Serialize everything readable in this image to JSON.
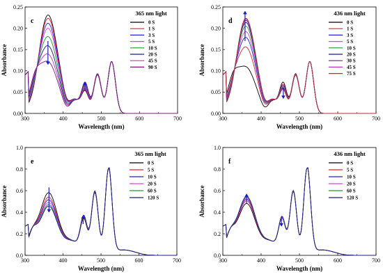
{
  "chart_data": [
    {
      "panel": "c",
      "type": "line",
      "light_label": "365 nm light",
      "xlabel": "Wavelength (nm)",
      "ylabel": "Absorbance",
      "xlim": [
        300,
        700
      ],
      "ylim": [
        0,
        0.25
      ],
      "xticks": [
        "300",
        "400",
        "500",
        "600",
        "700"
      ],
      "yticks": [
        "0.00",
        "0.05",
        "0.10",
        "0.15",
        "0.20",
        "0.25"
      ],
      "legend_position": "top-right",
      "peaks": [
        330,
        360,
        458,
        490,
        527
      ],
      "peak_min": 475,
      "arrows": [
        {
          "x": 360,
          "y1": 0.17,
          "y2": 0.115,
          "direction": "down"
        },
        {
          "x": 457,
          "y1": 0.054,
          "y2": 0.074,
          "direction": "up"
        }
      ],
      "series": [
        {
          "name": "0 S",
          "color": "#000000",
          "peak360": 0.232,
          "shoulder330": 0.098,
          "peak458": 0.044,
          "peak490": 0.09,
          "peak527": 0.122
        },
        {
          "name": "1 S",
          "color": "#e8202a",
          "peak360": 0.224,
          "shoulder330": 0.1,
          "peak458": 0.046,
          "peak490": 0.09,
          "peak527": 0.122
        },
        {
          "name": "3 S",
          "color": "#2222dd",
          "peak360": 0.212,
          "shoulder330": 0.102,
          "peak458": 0.049,
          "peak490": 0.091,
          "peak527": 0.122
        },
        {
          "name": "5 S",
          "color": "#e040e0",
          "peak360": 0.2,
          "shoulder330": 0.104,
          "peak458": 0.052,
          "peak490": 0.091,
          "peak527": 0.122
        },
        {
          "name": "10 S",
          "color": "#1b9a2a",
          "peak360": 0.18,
          "shoulder330": 0.107,
          "peak458": 0.055,
          "peak490": 0.092,
          "peak527": 0.122
        },
        {
          "name": "20 S",
          "color": "#1a1a8c",
          "peak360": 0.158,
          "shoulder330": 0.11,
          "peak458": 0.058,
          "peak490": 0.092,
          "peak527": 0.122
        },
        {
          "name": "45 S",
          "color": "#c832c8",
          "peak360": 0.138,
          "shoulder330": 0.113,
          "peak458": 0.061,
          "peak490": 0.093,
          "peak527": 0.122
        },
        {
          "name": "90 S",
          "color": "#7a1a7a",
          "peak360": 0.12,
          "shoulder330": 0.116,
          "peak458": 0.064,
          "peak490": 0.093,
          "peak527": 0.122
        }
      ]
    },
    {
      "panel": "d",
      "type": "line",
      "light_label": "436 nm light",
      "xlabel": "Wavelength (nm)",
      "ylabel": "Absorbance",
      "xlim": [
        300,
        700
      ],
      "ylim": [
        0,
        0.25
      ],
      "xticks": [
        "300",
        "400",
        "500",
        "600",
        "700"
      ],
      "yticks": [
        "0.00",
        "0.05",
        "0.10",
        "0.15",
        "0.20",
        "0.25"
      ],
      "legend_position": "top-right",
      "peaks": [
        320,
        360,
        458,
        490,
        527
      ],
      "peak_min": 475,
      "arrows": [
        {
          "x": 358,
          "y1": 0.17,
          "y2": 0.24,
          "direction": "up"
        },
        {
          "x": 458,
          "y1": 0.06,
          "y2": 0.035,
          "direction": "down"
        }
      ],
      "series": [
        {
          "name": "0 S",
          "color": "#000000",
          "peak360": 0.108,
          "shoulder330": 0.112,
          "peak458": 0.064,
          "peak490": 0.093,
          "peak527": 0.122
        },
        {
          "name": "1 S",
          "color": "#e8202a",
          "peak360": 0.155,
          "shoulder330": 0.108,
          "peak458": 0.059,
          "peak490": 0.092,
          "peak527": 0.122
        },
        {
          "name": "3 S",
          "color": "#2222dd",
          "peak360": 0.178,
          "shoulder330": 0.105,
          "peak458": 0.056,
          "peak490": 0.091,
          "peak527": 0.122
        },
        {
          "name": "5 S",
          "color": "#e040e0",
          "peak360": 0.192,
          "shoulder330": 0.104,
          "peak458": 0.054,
          "peak490": 0.091,
          "peak527": 0.122
        },
        {
          "name": "10 S",
          "color": "#1b9a2a",
          "peak360": 0.205,
          "shoulder330": 0.102,
          "peak458": 0.052,
          "peak490": 0.09,
          "peak527": 0.122
        },
        {
          "name": "20 S",
          "color": "#1a1a8c",
          "peak360": 0.214,
          "shoulder330": 0.1,
          "peak458": 0.05,
          "peak490": 0.09,
          "peak527": 0.122
        },
        {
          "name": "30 S",
          "color": "#7a1a7a",
          "peak360": 0.219,
          "shoulder330": 0.099,
          "peak458": 0.049,
          "peak490": 0.09,
          "peak527": 0.122
        },
        {
          "name": "45 S",
          "color": "#c832c8",
          "peak360": 0.222,
          "shoulder330": 0.098,
          "peak458": 0.048,
          "peak490": 0.09,
          "peak527": 0.122
        },
        {
          "name": "75 S",
          "color": "#b03030",
          "peak360": 0.224,
          "shoulder330": 0.098,
          "peak458": 0.047,
          "peak490": 0.09,
          "peak527": 0.122
        }
      ]
    },
    {
      "panel": "e",
      "type": "line",
      "light_label": "365 nm light",
      "xlabel": "Wavelength (nm)",
      "ylabel": "Absorbance",
      "xlim": [
        300,
        700
      ],
      "ylim": [
        0,
        1.0
      ],
      "xticks": [
        "300",
        "400",
        "500",
        "600",
        "700"
      ],
      "yticks": [
        "0.0",
        "0.2",
        "0.4",
        "0.6",
        "0.8",
        "1.0"
      ],
      "legend_position": "top-right",
      "peaks": [
        320,
        362,
        455,
        485,
        520
      ],
      "peak_min": 500,
      "arrows": [
        {
          "x": 363,
          "y1": 0.63,
          "y2": 0.4,
          "direction": "down"
        },
        {
          "x": 453,
          "y1": 0.29,
          "y2": 0.37,
          "direction": "up"
        }
      ],
      "series": [
        {
          "name": "0 S",
          "color": "#000000",
          "peak360": 0.58,
          "shoulder330": 0.3,
          "peak458": 0.3,
          "peak490": 0.58,
          "peak527": 0.8
        },
        {
          "name": "5 S",
          "color": "#e8202a",
          "peak360": 0.54,
          "shoulder330": 0.3,
          "peak458": 0.31,
          "peak490": 0.585,
          "peak527": 0.8
        },
        {
          "name": "10 S",
          "color": "#2222dd",
          "peak360": 0.515,
          "shoulder330": 0.3,
          "peak458": 0.315,
          "peak490": 0.588,
          "peak527": 0.802
        },
        {
          "name": "20 S",
          "color": "#e040e0",
          "peak360": 0.49,
          "shoulder330": 0.3,
          "peak458": 0.32,
          "peak490": 0.59,
          "peak527": 0.805
        },
        {
          "name": "60 S",
          "color": "#1b9a2a",
          "peak360": 0.47,
          "shoulder330": 0.3,
          "peak458": 0.325,
          "peak490": 0.592,
          "peak527": 0.808
        },
        {
          "name": "120 S",
          "color": "#1a1a8c",
          "peak360": 0.455,
          "shoulder330": 0.3,
          "peak458": 0.33,
          "peak490": 0.595,
          "peak527": 0.81
        }
      ]
    },
    {
      "panel": "f",
      "type": "line",
      "light_label": "436 nm light",
      "xlabel": "Wavelength (nm)",
      "ylabel": "Absorbance",
      "xlim": [
        300,
        700
      ],
      "ylim": [
        0,
        1.0
      ],
      "xticks": [
        "300",
        "400",
        "500",
        "600",
        "700"
      ],
      "yticks": [
        "0.0",
        "0.2",
        "0.4",
        "0.6",
        "0.8",
        "1.0"
      ],
      "legend_position": "top-right",
      "peaks": [
        320,
        362,
        455,
        485,
        520
      ],
      "peak_min": 500,
      "arrows": [
        {
          "x": 362,
          "y1": 0.48,
          "y2": 0.57,
          "direction": "up"
        },
        {
          "x": 453,
          "y1": 0.35,
          "y2": 0.27,
          "direction": "down"
        }
      ],
      "series": [
        {
          "name": "0 S",
          "color": "#000000",
          "peak360": 0.48,
          "shoulder330": 0.29,
          "peak458": 0.32,
          "peak490": 0.6,
          "peak527": 0.81
        },
        {
          "name": "5 S",
          "color": "#e8202a",
          "peak360": 0.505,
          "shoulder330": 0.29,
          "peak458": 0.315,
          "peak490": 0.598,
          "peak527": 0.81
        },
        {
          "name": "10 S",
          "color": "#2222dd",
          "peak360": 0.52,
          "shoulder330": 0.29,
          "peak458": 0.312,
          "peak490": 0.596,
          "peak527": 0.81
        },
        {
          "name": "20 S",
          "color": "#e040e0",
          "peak360": 0.53,
          "shoulder330": 0.29,
          "peak458": 0.31,
          "peak490": 0.594,
          "peak527": 0.81
        },
        {
          "name": "60 S",
          "color": "#1b9a2a",
          "peak360": 0.54,
          "shoulder330": 0.29,
          "peak458": 0.308,
          "peak490": 0.592,
          "peak527": 0.81
        },
        {
          "name": "120 S",
          "color": "#1a1a8c",
          "peak360": 0.545,
          "shoulder330": 0.29,
          "peak458": 0.306,
          "peak490": 0.59,
          "peak527": 0.81
        }
      ]
    }
  ]
}
